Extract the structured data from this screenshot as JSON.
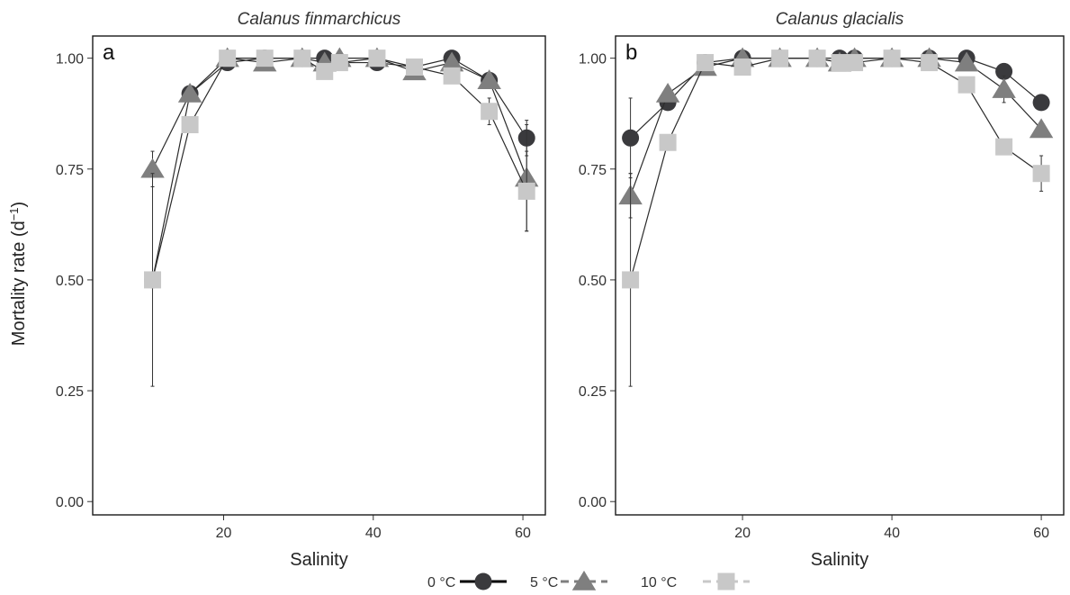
{
  "chart_data": {
    "type": "line",
    "ylabel_main": "Mortality rate (d",
    "ylabel_sup": "−1",
    "ylabel_end": ")",
    "legend": {
      "placement": "bottom",
      "items": [
        {
          "label": "0 °C",
          "color": "#3a3a3d",
          "marker": "circle",
          "line": "solid"
        },
        {
          "label": "5 °C",
          "color": "#7f7f7f",
          "marker": "triangle",
          "line": "dashed"
        },
        {
          "label": "10 °C",
          "color": "#c8c8c8",
          "marker": "square",
          "line": "dashed"
        }
      ]
    },
    "panels": [
      {
        "letter": "a",
        "title": "Calanus finmarchicus",
        "xlabel": "Salinity",
        "xlim": [
          2.5,
          63
        ],
        "ylim": [
          -0.03,
          1.05
        ],
        "xticks": [
          20,
          40,
          60
        ],
        "yticks": [
          0.0,
          0.25,
          0.5,
          0.75,
          1.0
        ],
        "ytick_labels": [
          "0.00",
          "0.25",
          "0.50",
          "0.75",
          "1.00"
        ],
        "grid": false,
        "series": [
          {
            "name": "0 °C",
            "x": [
              10.5,
              15.5,
              20.5,
              25.5,
              30.5,
              33.5,
              35.5,
              40.5,
              45.5,
              50.5,
              55.5,
              60.5
            ],
            "y": [
              0.5,
              0.92,
              0.99,
              1.0,
              1.0,
              1.0,
              0.99,
              0.99,
              0.98,
              1.0,
              0.95,
              0.82
            ],
            "err": [
              null,
              null,
              null,
              null,
              null,
              null,
              null,
              null,
              null,
              null,
              null,
              0.04
            ]
          },
          {
            "name": "5 °C",
            "x": [
              10.5,
              15.5,
              20.5,
              25.5,
              30.5,
              33.5,
              35.5,
              40.5,
              45.5,
              50.5,
              55.5,
              60.5
            ],
            "y": [
              0.75,
              0.92,
              1.0,
              0.99,
              1.0,
              0.99,
              1.0,
              1.0,
              0.97,
              0.99,
              0.95,
              0.73
            ],
            "err": [
              0.04,
              null,
              null,
              null,
              null,
              null,
              null,
              null,
              null,
              null,
              null,
              0.12
            ]
          },
          {
            "name": "10 °C",
            "x": [
              10.5,
              15.5,
              20.5,
              25.5,
              30.5,
              33.5,
              35.5,
              40.5,
              45.5,
              50.5,
              55.5,
              60.5
            ],
            "y": [
              0.5,
              0.85,
              1.0,
              1.0,
              1.0,
              0.97,
              0.99,
              1.0,
              0.98,
              0.96,
              0.88,
              0.7
            ],
            "err": [
              0.24,
              null,
              null,
              null,
              null,
              null,
              null,
              null,
              null,
              null,
              0.03,
              0.09
            ]
          }
        ]
      },
      {
        "letter": "b",
        "title": "Calanus glacialis",
        "xlabel": "Salinity",
        "xlim": [
          3,
          63
        ],
        "ylim": [
          -0.03,
          1.05
        ],
        "xticks": [
          20,
          40,
          60
        ],
        "yticks": [
          0.0,
          0.25,
          0.5,
          0.75,
          1.0
        ],
        "ytick_labels": [
          "0.00",
          "0.25",
          "0.50",
          "0.75",
          "1.00"
        ],
        "grid": false,
        "series": [
          {
            "name": "0 °C",
            "x": [
              5,
              10,
              15,
              20,
              25,
              30,
              33,
              35,
              40,
              45,
              50,
              55,
              60
            ],
            "y": [
              0.82,
              0.9,
              0.99,
              1.0,
              1.0,
              1.0,
              1.0,
              1.0,
              1.0,
              1.0,
              1.0,
              0.97,
              0.9
            ],
            "err": [
              0.09,
              null,
              null,
              null,
              null,
              null,
              null,
              null,
              null,
              null,
              null,
              null,
              null
            ]
          },
          {
            "name": "5 °C",
            "x": [
              5,
              10,
              15,
              20,
              25,
              30,
              33,
              35,
              40,
              45,
              50,
              55,
              60
            ],
            "y": [
              0.69,
              0.92,
              0.98,
              1.0,
              1.0,
              1.0,
              0.99,
              1.0,
              1.0,
              1.0,
              0.99,
              0.93,
              0.84
            ],
            "err": [
              0.05,
              null,
              null,
              null,
              null,
              null,
              null,
              null,
              null,
              null,
              null,
              0.03,
              null
            ]
          },
          {
            "name": "10 °C",
            "x": [
              5,
              10,
              15,
              20,
              25,
              30,
              33,
              35,
              40,
              45,
              50,
              55,
              60
            ],
            "y": [
              0.5,
              0.81,
              0.99,
              0.98,
              1.0,
              1.0,
              0.99,
              0.99,
              1.0,
              0.99,
              0.94,
              0.8,
              0.74
            ],
            "err": [
              0.24,
              null,
              null,
              null,
              null,
              null,
              null,
              null,
              null,
              null,
              null,
              null,
              0.04
            ]
          }
        ]
      }
    ]
  }
}
